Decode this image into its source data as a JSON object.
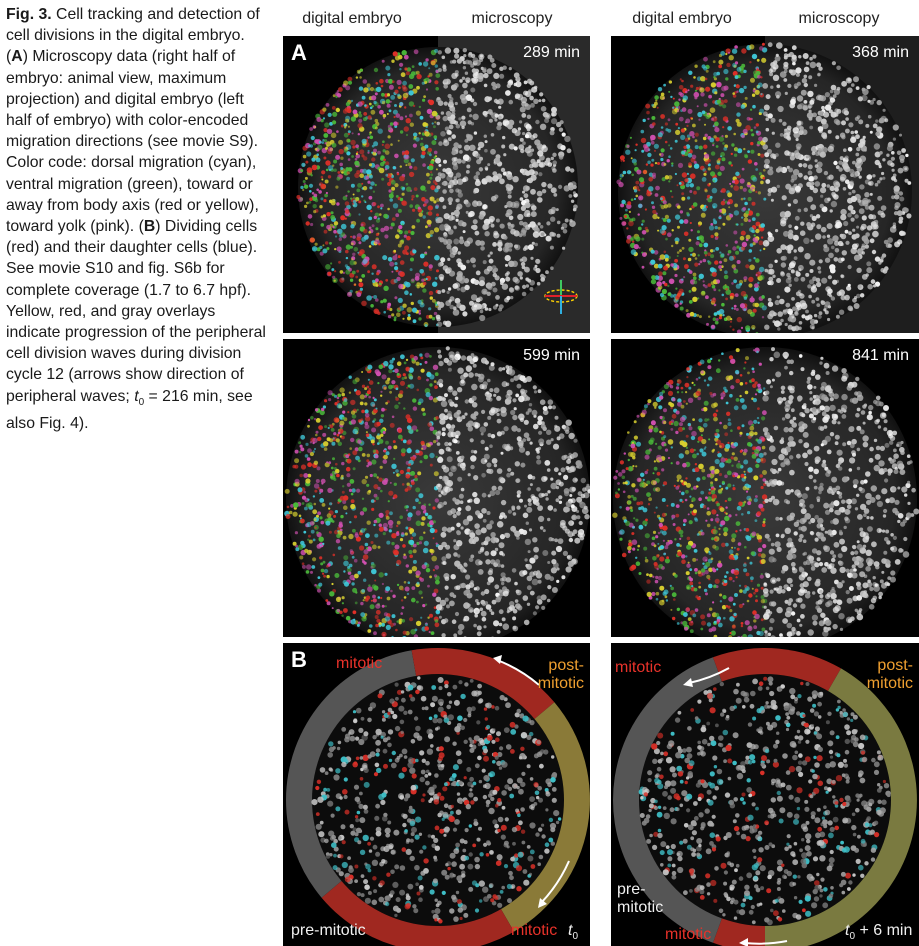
{
  "caption": {
    "fig_label": "Fig. 3.",
    "title": "Cell tracking and detection of cell divisions in the digital embryo.",
    "a_label": "A",
    "a_text": "Microscopy data (right half of embryo: animal view, maximum projection) and digital embryo (left half of embryo) with color-encoded migration directions (see movie S9). Color code: dorsal migration (cyan), ventral migration (green), toward or away from body axis (red or yellow), toward yolk (pink).",
    "b_label": "B",
    "b_text_1": "Dividing cells (red) and their daughter cells (blue). See movie S10 and fig. S6b for complete coverage (1.7 to 6.7 hpf). Yellow, red, and gray overlays indicate progression of the peripheral cell division waves during division cycle 12 (arrows show direction of peripheral waves;",
    "t0_symbol": "t",
    "t0_sub": "0",
    "b_text_2": "= 216 min, see also Fig. 4)."
  },
  "column_headers": [
    "digital embryo",
    "microscopy",
    "digital embryo",
    "microscopy"
  ],
  "panel_a": {
    "letter": "A",
    "timepoints": [
      "289 min",
      "368 min",
      "599 min",
      "841 min"
    ]
  },
  "panel_b": {
    "letter": "B",
    "left": {
      "mitotic_top": "mitotic",
      "post_mitotic": "post-\nmitotic",
      "pre_mitotic": "pre-mitotic",
      "mitotic_bottom": "mitotic",
      "time_symbol": "t",
      "time_sub": "0"
    },
    "right": {
      "mitotic_top": "mitotic",
      "post_mitotic": "post-\nmitotic",
      "pre_mitotic": "pre-\nmitotic",
      "mitotic_bottom": "mitotic",
      "time_symbol": "t",
      "time_sub": "0",
      "time_suffix": "+ 6 min"
    }
  },
  "colors": {
    "cyan": "#3fc8d8",
    "green": "#4ab83a",
    "red": "#e03028",
    "yellow": "#d8d030",
    "pink": "#d050b0",
    "mitotic_label": "#e8322a",
    "post_mitotic_label": "#f0a030"
  }
}
